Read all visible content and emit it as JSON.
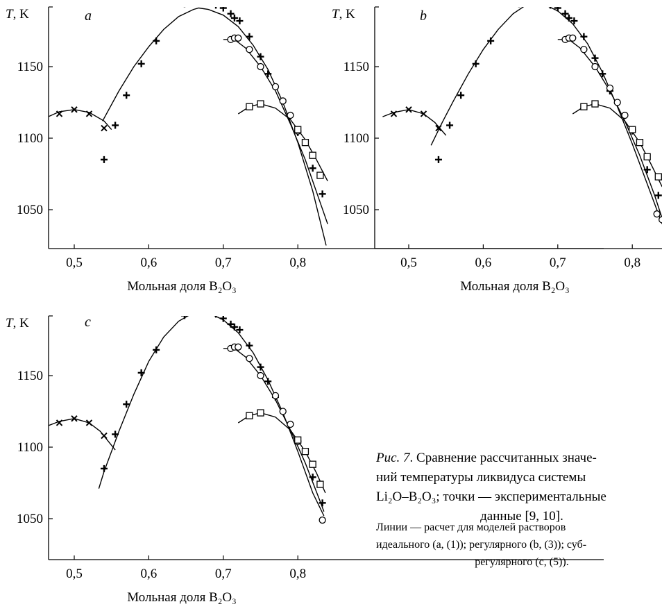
{
  "caption": {
    "fig_label": "Рис. 7",
    "text_1": ". Сравнение рассчитанных значе-",
    "text_2": "ний температуры ликвидуса системы",
    "text_3": "Li₂O–B₂O₃; точки — экспериментальные",
    "text_4": "данные [9, 10].",
    "note_1": "Линии — расчет для моделей растворов",
    "note_2": "идеального (a, (1)); регулярного (b, (3)); суб-",
    "note_3": "регулярного (c, (5))."
  },
  "chart_data": [
    {
      "type": "scatter",
      "panel_label": "a",
      "ylabel": "T, K",
      "xlabel": "Мольная доля B₂O₃",
      "xticks": [
        "0,5",
        "0,6",
        "0,7",
        "0,8"
      ],
      "yticks": [
        "1150",
        "1100",
        "1050"
      ],
      "xlim": [
        0.47,
        0.84
      ],
      "ylim": [
        1023,
        1199
      ],
      "points": {
        "cross_x": [
          [
            0.48,
            1117
          ],
          [
            0.5,
            1120
          ],
          [
            0.52,
            1117
          ],
          [
            0.54,
            1107
          ]
        ],
        "plus": [
          [
            0.54,
            1085
          ],
          [
            0.555,
            1109
          ],
          [
            0.57,
            1130
          ],
          [
            0.59,
            1152
          ],
          [
            0.61,
            1168
          ],
          [
            0.648,
            1194
          ],
          [
            0.667,
            1195
          ],
          [
            0.69,
            1193
          ],
          [
            0.7,
            1191
          ],
          [
            0.71,
            1187
          ],
          [
            0.715,
            1184
          ],
          [
            0.722,
            1182
          ],
          [
            0.735,
            1171
          ],
          [
            0.75,
            1157
          ],
          [
            0.76,
            1145
          ],
          [
            0.8,
            1104
          ],
          [
            0.82,
            1079
          ],
          [
            0.833,
            1061
          ]
        ],
        "circle": [
          [
            0.71,
            1169
          ],
          [
            0.715,
            1170
          ],
          [
            0.72,
            1170
          ],
          [
            0.735,
            1162
          ],
          [
            0.75,
            1150
          ],
          [
            0.77,
            1136
          ],
          [
            0.78,
            1126
          ],
          [
            0.79,
            1116
          ],
          [
            0.8,
            1105
          ]
        ],
        "square": [
          [
            0.735,
            1122
          ],
          [
            0.75,
            1124
          ],
          [
            0.8,
            1106
          ],
          [
            0.81,
            1097
          ],
          [
            0.82,
            1088
          ],
          [
            0.83,
            1074
          ]
        ]
      },
      "curves": [
        [
          [
            0.465,
            1115
          ],
          [
            0.48,
            1118.5
          ],
          [
            0.5,
            1120
          ],
          [
            0.52,
            1118
          ],
          [
            0.54,
            1112
          ],
          [
            0.55,
            1106
          ]
        ],
        [
          [
            0.538,
            1112
          ],
          [
            0.56,
            1133
          ],
          [
            0.58,
            1150
          ],
          [
            0.6,
            1164
          ],
          [
            0.62,
            1176
          ],
          [
            0.64,
            1185
          ],
          [
            0.66,
            1190
          ],
          [
            0.667,
            1191
          ],
          [
            0.68,
            1190
          ],
          [
            0.7,
            1186
          ],
          [
            0.72,
            1178
          ],
          [
            0.74,
            1165
          ],
          [
            0.76,
            1148
          ],
          [
            0.78,
            1125
          ],
          [
            0.8,
            1097
          ],
          [
            0.82,
            1063
          ],
          [
            0.838,
            1025
          ]
        ],
        [
          [
            0.7,
            1169
          ],
          [
            0.715,
            1169
          ],
          [
            0.73,
            1163
          ],
          [
            0.75,
            1150
          ],
          [
            0.77,
            1133
          ],
          [
            0.79,
            1110
          ],
          [
            0.81,
            1085
          ],
          [
            0.83,
            1055
          ],
          [
            0.84,
            1040
          ]
        ],
        [
          [
            0.72,
            1117
          ],
          [
            0.735,
            1122
          ],
          [
            0.75,
            1124
          ],
          [
            0.77,
            1121
          ],
          [
            0.79,
            1113
          ],
          [
            0.81,
            1099
          ],
          [
            0.825,
            1085
          ],
          [
            0.84,
            1070
          ]
        ]
      ]
    },
    {
      "type": "scatter",
      "panel_label": "b",
      "ylabel": "T, K",
      "xlabel": "Мольная доля B₂O₃",
      "xticks": [
        "0,5",
        "0,6",
        "0,7",
        "0,8"
      ],
      "yticks": [
        "1150",
        "1100",
        "1050"
      ],
      "xlim": [
        0.47,
        0.84
      ],
      "ylim": [
        1023,
        1199
      ],
      "points": {
        "cross_x": [
          [
            0.48,
            1117
          ],
          [
            0.5,
            1120
          ],
          [
            0.52,
            1117
          ],
          [
            0.54,
            1107
          ]
        ],
        "plus": [
          [
            0.54,
            1085
          ],
          [
            0.555,
            1109
          ],
          [
            0.57,
            1130
          ],
          [
            0.59,
            1152
          ],
          [
            0.61,
            1168
          ],
          [
            0.648,
            1194
          ],
          [
            0.667,
            1196
          ],
          [
            0.69,
            1193
          ],
          [
            0.7,
            1191
          ],
          [
            0.71,
            1187
          ],
          [
            0.715,
            1184
          ],
          [
            0.722,
            1182
          ],
          [
            0.735,
            1171
          ],
          [
            0.75,
            1156
          ],
          [
            0.76,
            1145
          ],
          [
            0.77,
            1133
          ],
          [
            0.8,
            1105
          ],
          [
            0.82,
            1078
          ],
          [
            0.835,
            1060
          ]
        ],
        "circle": [
          [
            0.71,
            1169
          ],
          [
            0.715,
            1170
          ],
          [
            0.72,
            1170
          ],
          [
            0.735,
            1162
          ],
          [
            0.75,
            1150
          ],
          [
            0.77,
            1135
          ],
          [
            0.78,
            1125
          ],
          [
            0.79,
            1116
          ],
          [
            0.8,
            1106
          ],
          [
            0.833,
            1047
          ],
          [
            0.84,
            1043
          ]
        ],
        "square": [
          [
            0.735,
            1122
          ],
          [
            0.75,
            1124
          ],
          [
            0.8,
            1106
          ],
          [
            0.81,
            1097
          ],
          [
            0.82,
            1087
          ],
          [
            0.835,
            1073
          ]
        ]
      },
      "curves": [
        [
          [
            0.465,
            1115
          ],
          [
            0.48,
            1118
          ],
          [
            0.5,
            1120
          ],
          [
            0.52,
            1117
          ],
          [
            0.535,
            1111
          ],
          [
            0.55,
            1102
          ]
        ],
        [
          [
            0.53,
            1095
          ],
          [
            0.545,
            1111
          ],
          [
            0.56,
            1126
          ],
          [
            0.58,
            1145
          ],
          [
            0.6,
            1162
          ],
          [
            0.62,
            1176
          ],
          [
            0.64,
            1187
          ],
          [
            0.66,
            1194
          ],
          [
            0.667,
            1195
          ],
          [
            0.68,
            1194
          ],
          [
            0.7,
            1189
          ],
          [
            0.72,
            1180
          ],
          [
            0.74,
            1166
          ],
          [
            0.76,
            1146
          ],
          [
            0.78,
            1122
          ],
          [
            0.8,
            1096
          ],
          [
            0.82,
            1068
          ],
          [
            0.84,
            1040
          ]
        ],
        [
          [
            0.7,
            1169
          ],
          [
            0.715,
            1169
          ],
          [
            0.73,
            1163
          ],
          [
            0.75,
            1150
          ],
          [
            0.77,
            1133
          ],
          [
            0.79,
            1112
          ],
          [
            0.81,
            1088
          ],
          [
            0.83,
            1060
          ],
          [
            0.84,
            1044
          ]
        ],
        [
          [
            0.72,
            1117
          ],
          [
            0.735,
            1122
          ],
          [
            0.75,
            1124
          ],
          [
            0.77,
            1121
          ],
          [
            0.79,
            1112
          ],
          [
            0.81,
            1097
          ],
          [
            0.825,
            1082
          ],
          [
            0.84,
            1066
          ]
        ]
      ]
    },
    {
      "type": "scatter",
      "panel_label": "c",
      "ylabel": "T, K",
      "xlabel": "Мольная доля B₂O₃",
      "xticks": [
        "0,5",
        "0,6",
        "0,7",
        "0,8"
      ],
      "yticks": [
        "1150",
        "1100",
        "1050"
      ],
      "xlim": [
        0.47,
        0.84
      ],
      "ylim": [
        1027,
        1198
      ],
      "points": {
        "cross_x": [
          [
            0.48,
            1117
          ],
          [
            0.5,
            1120
          ],
          [
            0.52,
            1117
          ],
          [
            0.54,
            1108
          ]
        ],
        "plus": [
          [
            0.54,
            1085
          ],
          [
            0.555,
            1109
          ],
          [
            0.57,
            1130
          ],
          [
            0.59,
            1152
          ],
          [
            0.61,
            1168
          ],
          [
            0.648,
            1192
          ],
          [
            0.667,
            1195
          ],
          [
            0.69,
            1193
          ],
          [
            0.7,
            1190
          ],
          [
            0.71,
            1186
          ],
          [
            0.715,
            1184
          ],
          [
            0.722,
            1182
          ],
          [
            0.735,
            1171
          ],
          [
            0.75,
            1156
          ],
          [
            0.76,
            1146
          ],
          [
            0.77,
            1135
          ],
          [
            0.8,
            1104
          ],
          [
            0.82,
            1079
          ],
          [
            0.833,
            1061
          ]
        ],
        "circle": [
          [
            0.71,
            1169
          ],
          [
            0.715,
            1170
          ],
          [
            0.72,
            1170
          ],
          [
            0.735,
            1162
          ],
          [
            0.75,
            1150
          ],
          [
            0.77,
            1136
          ],
          [
            0.78,
            1125
          ],
          [
            0.79,
            1116
          ],
          [
            0.8,
            1104
          ],
          [
            0.833,
            1049
          ]
        ],
        "square": [
          [
            0.735,
            1122
          ],
          [
            0.75,
            1124
          ],
          [
            0.8,
            1105
          ],
          [
            0.81,
            1097
          ],
          [
            0.82,
            1088
          ],
          [
            0.83,
            1074
          ]
        ]
      },
      "curves": [
        [
          [
            0.465,
            1115
          ],
          [
            0.48,
            1118
          ],
          [
            0.5,
            1120
          ],
          [
            0.52,
            1117
          ],
          [
            0.535,
            1111
          ],
          [
            0.555,
            1098
          ]
        ],
        [
          [
            0.533,
            1071
          ],
          [
            0.54,
            1083
          ],
          [
            0.55,
            1097
          ],
          [
            0.56,
            1111
          ],
          [
            0.58,
            1137
          ],
          [
            0.6,
            1160
          ],
          [
            0.62,
            1177
          ],
          [
            0.64,
            1188
          ],
          [
            0.66,
            1194
          ],
          [
            0.667,
            1195
          ],
          [
            0.68,
            1194
          ],
          [
            0.7,
            1189
          ],
          [
            0.72,
            1180
          ],
          [
            0.74,
            1166
          ],
          [
            0.76,
            1147
          ],
          [
            0.78,
            1124
          ],
          [
            0.8,
            1097
          ],
          [
            0.82,
            1068
          ],
          [
            0.835,
            1052
          ]
        ],
        [
          [
            0.7,
            1169
          ],
          [
            0.715,
            1169
          ],
          [
            0.73,
            1163
          ],
          [
            0.75,
            1150
          ],
          [
            0.77,
            1133
          ],
          [
            0.79,
            1112
          ],
          [
            0.81,
            1089
          ],
          [
            0.83,
            1062
          ],
          [
            0.835,
            1055
          ]
        ],
        [
          [
            0.72,
            1117
          ],
          [
            0.735,
            1122
          ],
          [
            0.75,
            1124
          ],
          [
            0.77,
            1121
          ],
          [
            0.79,
            1112
          ],
          [
            0.81,
            1097
          ],
          [
            0.825,
            1082
          ],
          [
            0.837,
            1068
          ]
        ]
      ]
    }
  ]
}
